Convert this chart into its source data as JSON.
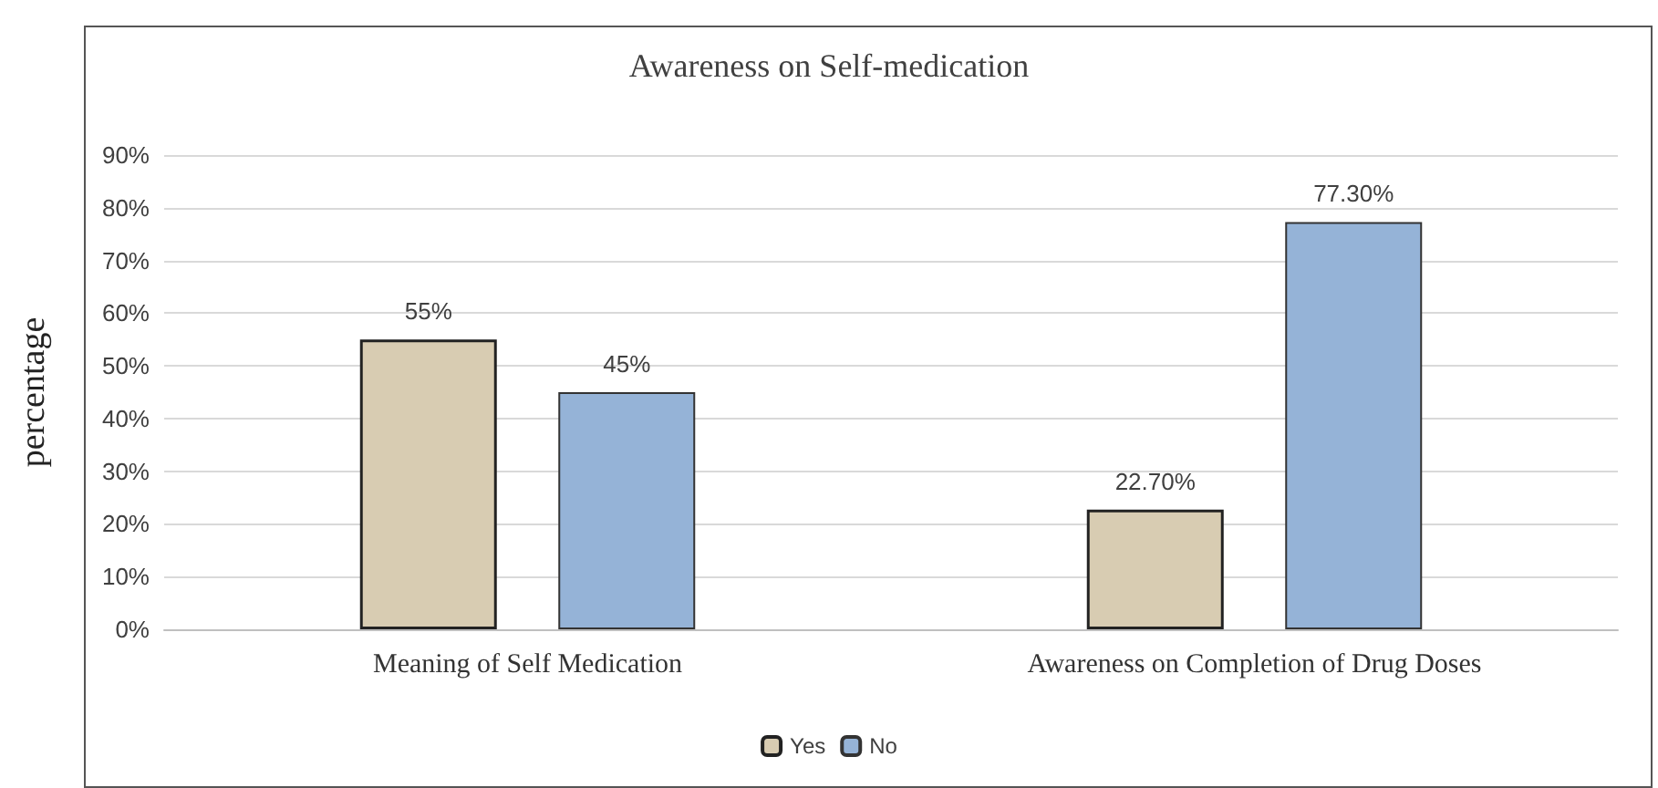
{
  "chart_data": {
    "type": "bar",
    "title": "Awareness on Self-medication",
    "ylabel": "percentage",
    "categories": [
      "Meaning of Self Medication",
      "Awareness on Completion of Drug Doses"
    ],
    "series": [
      {
        "name": "Yes",
        "color": "#d8ccb2",
        "values": [
          55,
          22.7
        ],
        "value_labels": [
          "55%",
          "22.70%"
        ]
      },
      {
        "name": "No",
        "color": "#95b3d7",
        "values": [
          45,
          77.3
        ],
        "value_labels": [
          "45%",
          "77.30%"
        ]
      }
    ],
    "ylim": [
      0,
      90
    ],
    "yticks": [
      {
        "value": 0,
        "label": "0%"
      },
      {
        "value": 10,
        "label": "10%"
      },
      {
        "value": 20,
        "label": "20%"
      },
      {
        "value": 30,
        "label": "30%"
      },
      {
        "value": 40,
        "label": "40%"
      },
      {
        "value": 50,
        "label": "50%"
      },
      {
        "value": 60,
        "label": "60%"
      },
      {
        "value": 70,
        "label": "70%"
      },
      {
        "value": 80,
        "label": "80%"
      },
      {
        "value": 90,
        "label": "90%"
      }
    ],
    "grid": "y",
    "legend": "bottom"
  }
}
